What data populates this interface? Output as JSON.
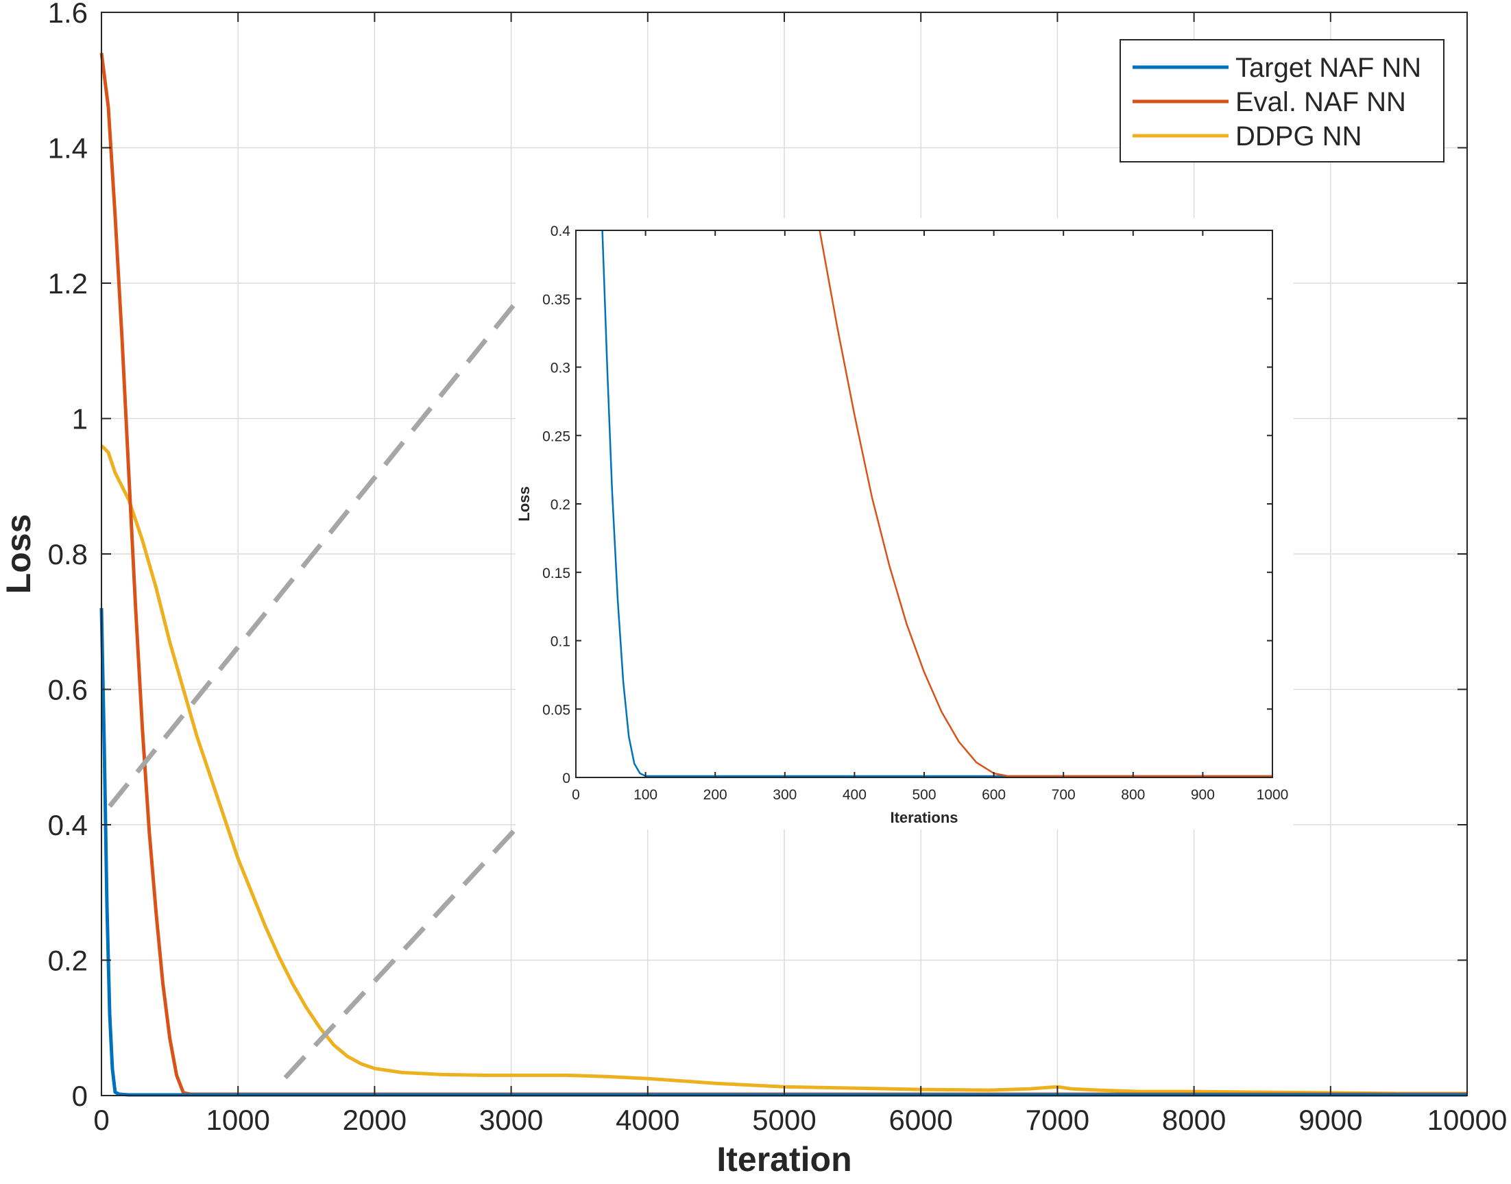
{
  "chart_data": [
    {
      "type": "line",
      "title": "",
      "xlabel": "Iteration",
      "ylabel": "Loss",
      "xlim": [
        0,
        10000
      ],
      "ylim": [
        0,
        1.6
      ],
      "xticks": [
        0,
        1000,
        2000,
        3000,
        4000,
        5000,
        6000,
        7000,
        8000,
        9000,
        10000
      ],
      "xtick_labels": [
        "0",
        "1000",
        "2000",
        "3000",
        "4000",
        "5000",
        "6000",
        "7000",
        "8000",
        "9000",
        "10000"
      ],
      "yticks": [
        0,
        0.2,
        0.4,
        0.6,
        0.8,
        1,
        1.2,
        1.4,
        1.6
      ],
      "ytick_labels": [
        "0",
        "0.2",
        "0.4",
        "0.6",
        "0.8",
        "1",
        "1.2",
        "1.4",
        "1.6"
      ],
      "grid": true,
      "legend_position": "top-right",
      "series": [
        {
          "name": "Target NAF NN",
          "color": "#0072bd",
          "x": [
            0,
            20,
            40,
            60,
            80,
            100,
            130,
            200,
            400,
            1000,
            2000,
            4000,
            6000,
            8000,
            10000
          ],
          "y": [
            0.72,
            0.52,
            0.28,
            0.12,
            0.04,
            0.005,
            0.002,
            0.001,
            0.001,
            0.001,
            0.001,
            0.001,
            0.001,
            0.001,
            0.001
          ]
        },
        {
          "name": "Eval. NAF NN",
          "color": "#d95319",
          "x": [
            0,
            50,
            100,
            150,
            200,
            250,
            300,
            350,
            400,
            450,
            500,
            550,
            600,
            650,
            1000,
            2000,
            4000,
            6000,
            8000,
            10000
          ],
          "y": [
            1.54,
            1.46,
            1.3,
            1.12,
            0.92,
            0.72,
            0.54,
            0.39,
            0.27,
            0.165,
            0.085,
            0.03,
            0.004,
            0.002,
            0.002,
            0.002,
            0.002,
            0.002,
            0.002,
            0.002
          ],
          "inset_x": [
            350,
            375,
            400,
            425,
            450,
            475,
            500,
            525,
            550,
            575,
            600,
            620,
            700,
            800,
            900,
            1000
          ],
          "inset_y": [
            0.4,
            0.33,
            0.265,
            0.205,
            0.155,
            0.112,
            0.077,
            0.048,
            0.026,
            0.011,
            0.003,
            0.001,
            0.001,
            0.001,
            0.001,
            0.001
          ]
        },
        {
          "name": "DDPG NN",
          "color": "#edb120",
          "x": [
            0,
            50,
            100,
            200,
            300,
            400,
            500,
            600,
            700,
            800,
            900,
            1000,
            1100,
            1200,
            1300,
            1400,
            1500,
            1600,
            1700,
            1800,
            1900,
            2000,
            2200,
            2500,
            2800,
            3100,
            3400,
            3700,
            4000,
            4500,
            5000,
            5500,
            6000,
            6500,
            6800,
            7000,
            7100,
            7300,
            7600,
            8000,
            8500,
            9000,
            9500,
            10000
          ],
          "y": [
            0.96,
            0.95,
            0.92,
            0.88,
            0.82,
            0.75,
            0.67,
            0.6,
            0.53,
            0.47,
            0.41,
            0.35,
            0.3,
            0.25,
            0.205,
            0.165,
            0.13,
            0.1,
            0.075,
            0.058,
            0.047,
            0.04,
            0.034,
            0.031,
            0.03,
            0.03,
            0.03,
            0.028,
            0.025,
            0.018,
            0.013,
            0.011,
            0.009,
            0.008,
            0.01,
            0.013,
            0.01,
            0.008,
            0.006,
            0.006,
            0.005,
            0.004,
            0.003,
            0.003
          ]
        }
      ]
    },
    {
      "type": "line",
      "title": "",
      "xlabel": "Iterations",
      "ylabel": "Loss",
      "xlim": [
        0,
        1000
      ],
      "ylim": [
        0,
        0.4
      ],
      "xticks": [
        0,
        100,
        200,
        300,
        400,
        500,
        600,
        700,
        800,
        900,
        1000
      ],
      "xtick_labels": [
        "0",
        "100",
        "200",
        "300",
        "400",
        "500",
        "600",
        "700",
        "800",
        "900",
        "1000"
      ],
      "yticks": [
        0,
        0.05,
        0.1,
        0.15,
        0.2,
        0.25,
        0.3,
        0.35,
        0.4
      ],
      "ytick_labels": [
        "0",
        "0.05",
        "0.1",
        "0.15",
        "0.2",
        "0.25",
        "0.3",
        "0.35",
        "0.4"
      ],
      "grid": false,
      "series": [
        {
          "name": "Target NAF NN",
          "color": "#0072bd",
          "x": [
            38,
            45,
            52,
            60,
            68,
            76,
            84,
            92,
            100,
            150,
            300,
            500,
            700,
            1000
          ],
          "y": [
            0.4,
            0.3,
            0.21,
            0.13,
            0.07,
            0.03,
            0.01,
            0.003,
            0.001,
            0.001,
            0.001,
            0.001,
            0.001,
            0.001
          ]
        },
        {
          "name": "Eval. NAF NN",
          "color": "#d95319",
          "x": [
            350,
            375,
            400,
            425,
            450,
            475,
            500,
            525,
            550,
            575,
            600,
            620,
            700,
            800,
            900,
            1000
          ],
          "y": [
            0.4,
            0.33,
            0.265,
            0.205,
            0.155,
            0.112,
            0.077,
            0.048,
            0.026,
            0.011,
            0.003,
            0.001,
            0.001,
            0.001,
            0.001,
            0.001
          ]
        }
      ]
    }
  ]
}
